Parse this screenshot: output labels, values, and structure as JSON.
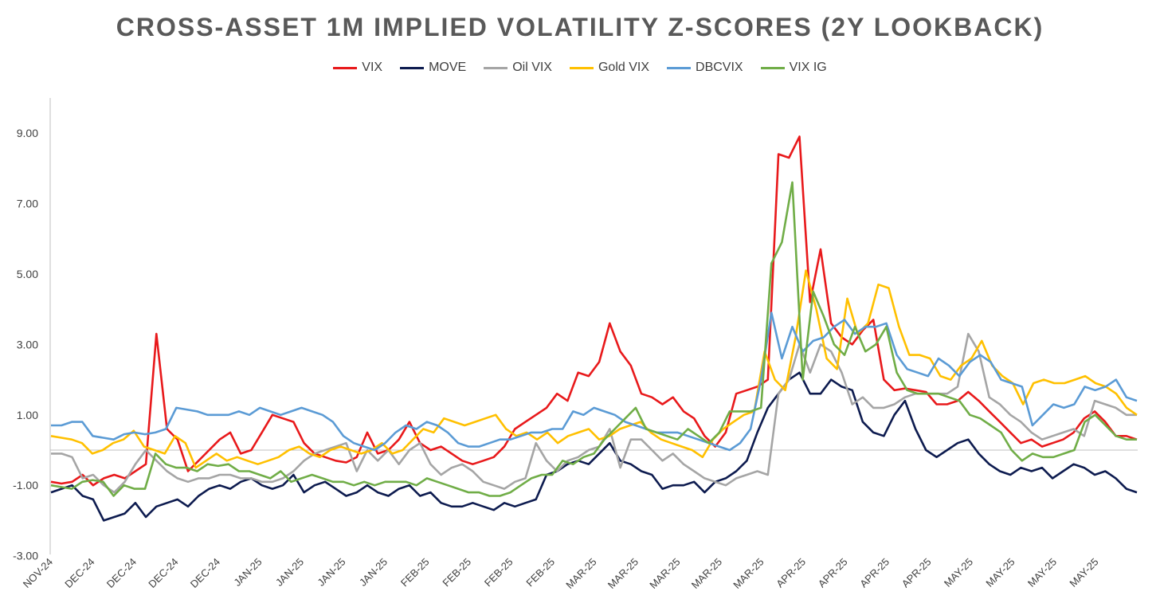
{
  "chart_data": {
    "type": "line",
    "title": "CROSS-ASSET 1M IMPLIED VOLATILITY Z-SCORES (2Y LOOKBACK)",
    "xlabel": "",
    "ylabel": "",
    "ylim": [
      -3,
      10
    ],
    "yticks": [
      -3,
      -1,
      1,
      3,
      5,
      7,
      9
    ],
    "ytick_labels": [
      "-3.00",
      "-1.00",
      "1.00",
      "3.00",
      "5.00",
      "7.00",
      "9.00"
    ],
    "xtick_labels": [
      "NOV-24",
      "DEC-24",
      "DEC-24",
      "DEC-24",
      "DEC-24",
      "JAN-25",
      "JAN-25",
      "JAN-25",
      "JAN-25",
      "FEB-25",
      "FEB-25",
      "FEB-25",
      "FEB-25",
      "MAR-25",
      "MAR-25",
      "MAR-25",
      "MAR-25",
      "MAR-25",
      "APR-25",
      "APR-25",
      "APR-25",
      "APR-25",
      "MAY-25",
      "MAY-25",
      "MAY-25",
      "MAY-25"
    ],
    "legend_position": "top-center",
    "grid": false,
    "series": [
      {
        "name": "VIX",
        "color": "#e8191b",
        "values": [
          -0.9,
          -0.95,
          -0.9,
          -0.7,
          -1.0,
          -0.8,
          -0.7,
          -0.8,
          -0.6,
          -0.4,
          3.3,
          0.6,
          0.3,
          -0.6,
          -0.3,
          0.0,
          0.3,
          0.5,
          -0.1,
          0.0,
          0.5,
          1.0,
          0.9,
          0.8,
          0.2,
          -0.1,
          -0.2,
          -0.3,
          -0.35,
          -0.2,
          0.5,
          -0.1,
          0.0,
          0.3,
          0.8,
          0.2,
          0.0,
          0.1,
          -0.1,
          -0.3,
          -0.4,
          -0.3,
          -0.2,
          0.1,
          0.6,
          0.8,
          1.0,
          1.2,
          1.6,
          1.4,
          2.2,
          2.1,
          2.5,
          3.6,
          2.8,
          2.4,
          1.6,
          1.5,
          1.3,
          1.5,
          1.1,
          0.9,
          0.4,
          0.1,
          0.5,
          1.6,
          1.7,
          1.8,
          2.0,
          8.4,
          8.3,
          8.9,
          4.2,
          5.7,
          3.6,
          3.2,
          3.0,
          3.4,
          3.7,
          2.0,
          1.7,
          1.75,
          1.7,
          1.65,
          1.3,
          1.3,
          1.4,
          1.65,
          1.4,
          1.1,
          0.8,
          0.5,
          0.2,
          0.3,
          0.1,
          0.2,
          0.3,
          0.5,
          0.9,
          1.1,
          0.8,
          0.4,
          0.4,
          0.3
        ]
      },
      {
        "name": "MOVE",
        "color": "#0d1b4f",
        "values": [
          -1.2,
          -1.1,
          -1.0,
          -1.3,
          -1.4,
          -2.0,
          -1.9,
          -1.8,
          -1.5,
          -1.9,
          -1.6,
          -1.5,
          -1.4,
          -1.6,
          -1.3,
          -1.1,
          -1.0,
          -1.1,
          -0.9,
          -0.8,
          -1.0,
          -1.1,
          -1.0,
          -0.7,
          -1.2,
          -1.0,
          -0.9,
          -1.1,
          -1.3,
          -1.2,
          -1.0,
          -1.2,
          -1.3,
          -1.1,
          -1.0,
          -1.3,
          -1.2,
          -1.5,
          -1.6,
          -1.6,
          -1.5,
          -1.6,
          -1.7,
          -1.5,
          -1.6,
          -1.5,
          -1.4,
          -0.7,
          -0.6,
          -0.4,
          -0.3,
          -0.4,
          -0.1,
          0.2,
          -0.3,
          -0.4,
          -0.6,
          -0.7,
          -1.1,
          -1.0,
          -1.0,
          -0.9,
          -1.2,
          -0.9,
          -0.8,
          -0.6,
          -0.3,
          0.5,
          1.2,
          1.6,
          2.0,
          2.2,
          1.6,
          1.6,
          2.0,
          1.8,
          1.7,
          0.8,
          0.5,
          0.4,
          1.0,
          1.4,
          0.6,
          0.0,
          -0.2,
          0.0,
          0.2,
          0.3,
          -0.1,
          -0.4,
          -0.6,
          -0.7,
          -0.5,
          -0.6,
          -0.5,
          -0.8,
          -0.6,
          -0.4,
          -0.5,
          -0.7,
          -0.6,
          -0.8,
          -1.1,
          -1.2
        ]
      },
      {
        "name": "Oil VIX",
        "color": "#a5a5a5",
        "values": [
          -0.1,
          -0.1,
          -0.2,
          -0.8,
          -0.7,
          -1.0,
          -1.2,
          -0.9,
          -0.4,
          0.0,
          -0.3,
          -0.6,
          -0.8,
          -0.9,
          -0.8,
          -0.8,
          -0.7,
          -0.7,
          -0.8,
          -0.8,
          -0.9,
          -0.9,
          -0.8,
          -0.6,
          -0.3,
          -0.1,
          0.0,
          0.1,
          0.2,
          -0.6,
          0.0,
          -0.3,
          0.0,
          -0.4,
          0.0,
          0.2,
          -0.4,
          -0.7,
          -0.5,
          -0.4,
          -0.6,
          -0.9,
          -1.0,
          -1.1,
          -0.9,
          -0.8,
          0.2,
          -0.3,
          -0.6,
          -0.3,
          -0.2,
          0.0,
          0.1,
          0.6,
          -0.5,
          0.3,
          0.3,
          0.0,
          -0.3,
          -0.1,
          -0.4,
          -0.6,
          -0.8,
          -0.9,
          -1.0,
          -0.8,
          -0.7,
          -0.6,
          -0.7,
          1.6,
          2.0,
          3.0,
          2.2,
          3.0,
          2.8,
          2.2,
          1.3,
          1.5,
          1.2,
          1.2,
          1.3,
          1.5,
          1.6,
          1.6,
          1.6,
          1.6,
          1.8,
          3.3,
          2.8,
          1.5,
          1.3,
          1.0,
          0.8,
          0.5,
          0.3,
          0.4,
          0.5,
          0.6,
          0.4,
          1.4,
          1.3,
          1.2,
          1.0,
          1.0
        ]
      },
      {
        "name": "Gold VIX",
        "color": "#ffc000",
        "values": [
          0.4,
          0.35,
          0.3,
          0.2,
          -0.1,
          0.0,
          0.2,
          0.3,
          0.55,
          0.1,
          0.0,
          -0.1,
          0.4,
          0.2,
          -0.5,
          -0.3,
          -0.1,
          -0.3,
          -0.2,
          -0.3,
          -0.4,
          -0.3,
          -0.2,
          0.0,
          0.1,
          -0.1,
          -0.2,
          0.0,
          0.1,
          0.0,
          -0.1,
          0.0,
          0.2,
          -0.1,
          0.0,
          0.3,
          0.6,
          0.5,
          0.9,
          0.8,
          0.7,
          0.8,
          0.9,
          1.0,
          0.6,
          0.4,
          0.5,
          0.3,
          0.5,
          0.2,
          0.4,
          0.5,
          0.6,
          0.3,
          0.4,
          0.6,
          0.7,
          0.8,
          0.5,
          0.3,
          0.2,
          0.1,
          0.0,
          -0.2,
          0.3,
          0.6,
          0.8,
          1.0,
          1.1,
          2.8,
          2.0,
          1.7,
          3.2,
          5.1,
          4.0,
          2.6,
          2.3,
          4.3,
          3.3,
          3.6,
          4.7,
          4.6,
          3.5,
          2.7,
          2.7,
          2.6,
          2.1,
          2.0,
          2.4,
          2.6,
          3.1,
          2.4,
          2.1,
          1.9,
          1.3,
          1.9,
          2.0,
          1.9,
          1.9,
          2.0,
          2.1,
          1.9,
          1.8,
          1.6,
          1.2,
          1.0
        ]
      },
      {
        "name": "DBCVIX",
        "color": "#5b9bd5",
        "values": [
          0.7,
          0.7,
          0.8,
          0.8,
          0.4,
          0.35,
          0.3,
          0.45,
          0.5,
          0.45,
          0.5,
          0.6,
          1.2,
          1.15,
          1.1,
          1.0,
          1.0,
          1.0,
          1.1,
          1.0,
          1.2,
          1.1,
          1.0,
          1.1,
          1.2,
          1.1,
          1.0,
          0.8,
          0.4,
          0.2,
          0.1,
          0.0,
          0.2,
          0.5,
          0.7,
          0.6,
          0.8,
          0.7,
          0.5,
          0.2,
          0.1,
          0.1,
          0.2,
          0.3,
          0.3,
          0.4,
          0.5,
          0.5,
          0.6,
          0.6,
          1.1,
          1.0,
          1.2,
          1.1,
          1.0,
          0.8,
          0.7,
          0.6,
          0.5,
          0.5,
          0.5,
          0.4,
          0.3,
          0.2,
          0.1,
          0.0,
          0.2,
          0.6,
          2.0,
          3.9,
          2.6,
          3.5,
          2.8,
          3.1,
          3.2,
          3.5,
          3.7,
          3.3,
          3.5,
          3.5,
          3.6,
          2.7,
          2.3,
          2.2,
          2.1,
          2.6,
          2.4,
          2.1,
          2.5,
          2.7,
          2.5,
          2.0,
          1.9,
          1.8,
          0.7,
          1.0,
          1.3,
          1.2,
          1.3,
          1.8,
          1.7,
          1.8,
          2.0,
          1.5,
          1.4
        ]
      },
      {
        "name": "VIX IG",
        "color": "#70ad47",
        "values": [
          -1.0,
          -1.05,
          -1.1,
          -0.9,
          -0.85,
          -0.9,
          -1.3,
          -1.0,
          -1.1,
          -1.1,
          -0.1,
          -0.4,
          -0.5,
          -0.5,
          -0.6,
          -0.4,
          -0.45,
          -0.4,
          -0.6,
          -0.6,
          -0.7,
          -0.8,
          -0.6,
          -0.9,
          -0.8,
          -0.7,
          -0.8,
          -0.9,
          -0.9,
          -1.0,
          -0.9,
          -1.0,
          -0.9,
          -0.9,
          -0.9,
          -1.0,
          -0.8,
          -0.9,
          -1.0,
          -1.1,
          -1.2,
          -1.2,
          -1.3,
          -1.3,
          -1.2,
          -1.0,
          -0.8,
          -0.7,
          -0.7,
          -0.3,
          -0.4,
          -0.2,
          -0.1,
          0.3,
          0.6,
          0.9,
          1.2,
          0.6,
          0.5,
          0.4,
          0.3,
          0.6,
          0.4,
          0.2,
          0.5,
          1.1,
          1.1,
          1.1,
          1.2,
          5.3,
          5.9,
          7.6,
          2.0,
          4.5,
          3.8,
          3.0,
          2.7,
          3.5,
          2.8,
          3.0,
          3.5,
          2.2,
          1.7,
          1.6,
          1.6,
          1.6,
          1.5,
          1.4,
          1.0,
          0.9,
          0.7,
          0.5,
          0.0,
          -0.3,
          -0.1,
          -0.2,
          -0.2,
          -0.1,
          0.0,
          0.8,
          1.0,
          0.7,
          0.4,
          0.3,
          0.3
        ]
      }
    ]
  }
}
